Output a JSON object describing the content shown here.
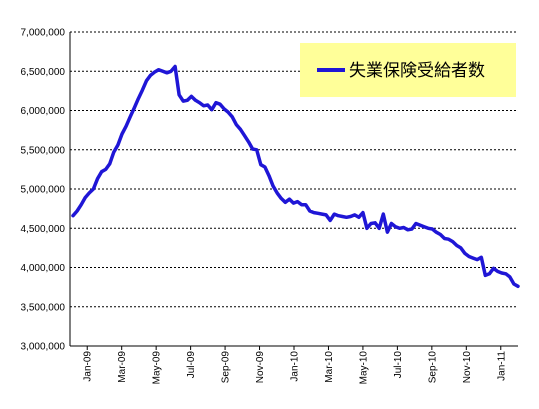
{
  "chart_data": {
    "type": "line",
    "title": "",
    "xlabel": "",
    "ylabel": "",
    "ylim": [
      3000000,
      7000000
    ],
    "yticks": [
      3000000,
      3500000,
      4000000,
      4500000,
      5000000,
      5500000,
      6000000,
      6500000,
      7000000
    ],
    "ytick_labels": [
      "3,000,000",
      "3,500,000",
      "4,000,000",
      "4,500,000",
      "5,000,000",
      "5,500,000",
      "6,000,000",
      "6,500,000",
      "7,000,000"
    ],
    "xtick_labels": [
      "Jan-09",
      "Mar-09",
      "May-09",
      "Jul-09",
      "Sep-09",
      "Nov-09",
      "Jan-10",
      "Mar-10",
      "May-10",
      "Jul-10",
      "Sep-10",
      "Nov-10",
      "Jan-11"
    ],
    "grid": true,
    "legend": "top-right",
    "series": [
      {
        "name": "失業保険受給者数",
        "color": "#1f16d6",
        "values": [
          4660000,
          4720000,
          4800000,
          4890000,
          4950000,
          5000000,
          5130000,
          5220000,
          5250000,
          5320000,
          5470000,
          5560000,
          5700000,
          5800000,
          5920000,
          6030000,
          6150000,
          6260000,
          6380000,
          6450000,
          6490000,
          6520000,
          6500000,
          6480000,
          6500000,
          6560000,
          6200000,
          6120000,
          6130000,
          6180000,
          6130000,
          6100000,
          6060000,
          6070000,
          6010000,
          6100000,
          6080000,
          6020000,
          5980000,
          5920000,
          5820000,
          5760000,
          5680000,
          5600000,
          5510000,
          5500000,
          5310000,
          5280000,
          5170000,
          5040000,
          4950000,
          4880000,
          4830000,
          4870000,
          4820000,
          4840000,
          4800000,
          4800000,
          4720000,
          4700000,
          4690000,
          4680000,
          4670000,
          4600000,
          4680000,
          4660000,
          4650000,
          4640000,
          4650000,
          4670000,
          4640000,
          4700000,
          4500000,
          4560000,
          4570000,
          4500000,
          4680000,
          4450000,
          4560000,
          4520000,
          4500000,
          4510000,
          4480000,
          4490000,
          4560000,
          4540000,
          4520000,
          4500000,
          4490000,
          4450000,
          4420000,
          4370000,
          4360000,
          4330000,
          4280000,
          4250000,
          4180000,
          4140000,
          4120000,
          4100000,
          4130000,
          3900000,
          3920000,
          3990000,
          3950000,
          3930000,
          3920000,
          3880000,
          3790000,
          3760000
        ]
      }
    ]
  }
}
